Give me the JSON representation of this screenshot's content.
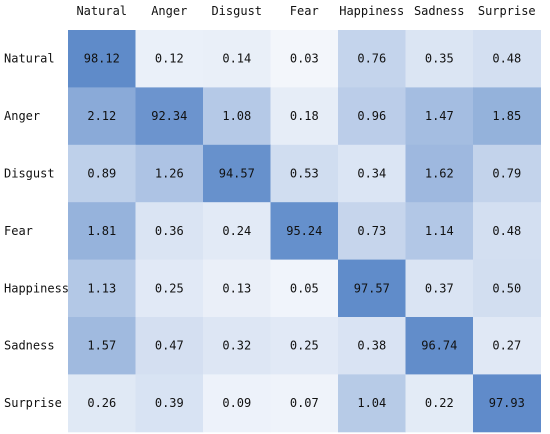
{
  "chart_data": {
    "type": "heatmap",
    "title": "",
    "x_categories": [
      "Natural",
      "Anger",
      "Disgust",
      "Fear",
      "Happiness",
      "Sadness",
      "Surprise"
    ],
    "y_categories": [
      "Natural",
      "Anger",
      "Disgust",
      "Fear",
      "Happiness",
      "Sadness",
      "Surprise"
    ],
    "values": [
      [
        "98.12",
        "0.12",
        "0.14",
        "0.03",
        "0.76",
        "0.35",
        "0.48"
      ],
      [
        "2.12",
        "92.34",
        "1.08",
        "0.18",
        "0.96",
        "1.47",
        "1.85"
      ],
      [
        "0.89",
        "1.26",
        "94.57",
        "0.53",
        "0.34",
        "1.62",
        "0.79"
      ],
      [
        "1.81",
        "0.36",
        "0.24",
        "95.24",
        "0.73",
        "1.14",
        "0.48"
      ],
      [
        "1.13",
        "0.25",
        "0.13",
        "0.05",
        "97.57",
        "0.37",
        "0.50"
      ],
      [
        "1.57",
        "0.47",
        "0.32",
        "0.25",
        "0.38",
        "96.74",
        "0.27"
      ],
      [
        "0.26",
        "0.39",
        "0.09",
        "0.07",
        "1.04",
        "0.22",
        "97.93"
      ]
    ],
    "x_tick_position": "top",
    "legend": "none",
    "colors": {
      "low": "#f7f9fd",
      "high": "#5b88c8"
    }
  }
}
